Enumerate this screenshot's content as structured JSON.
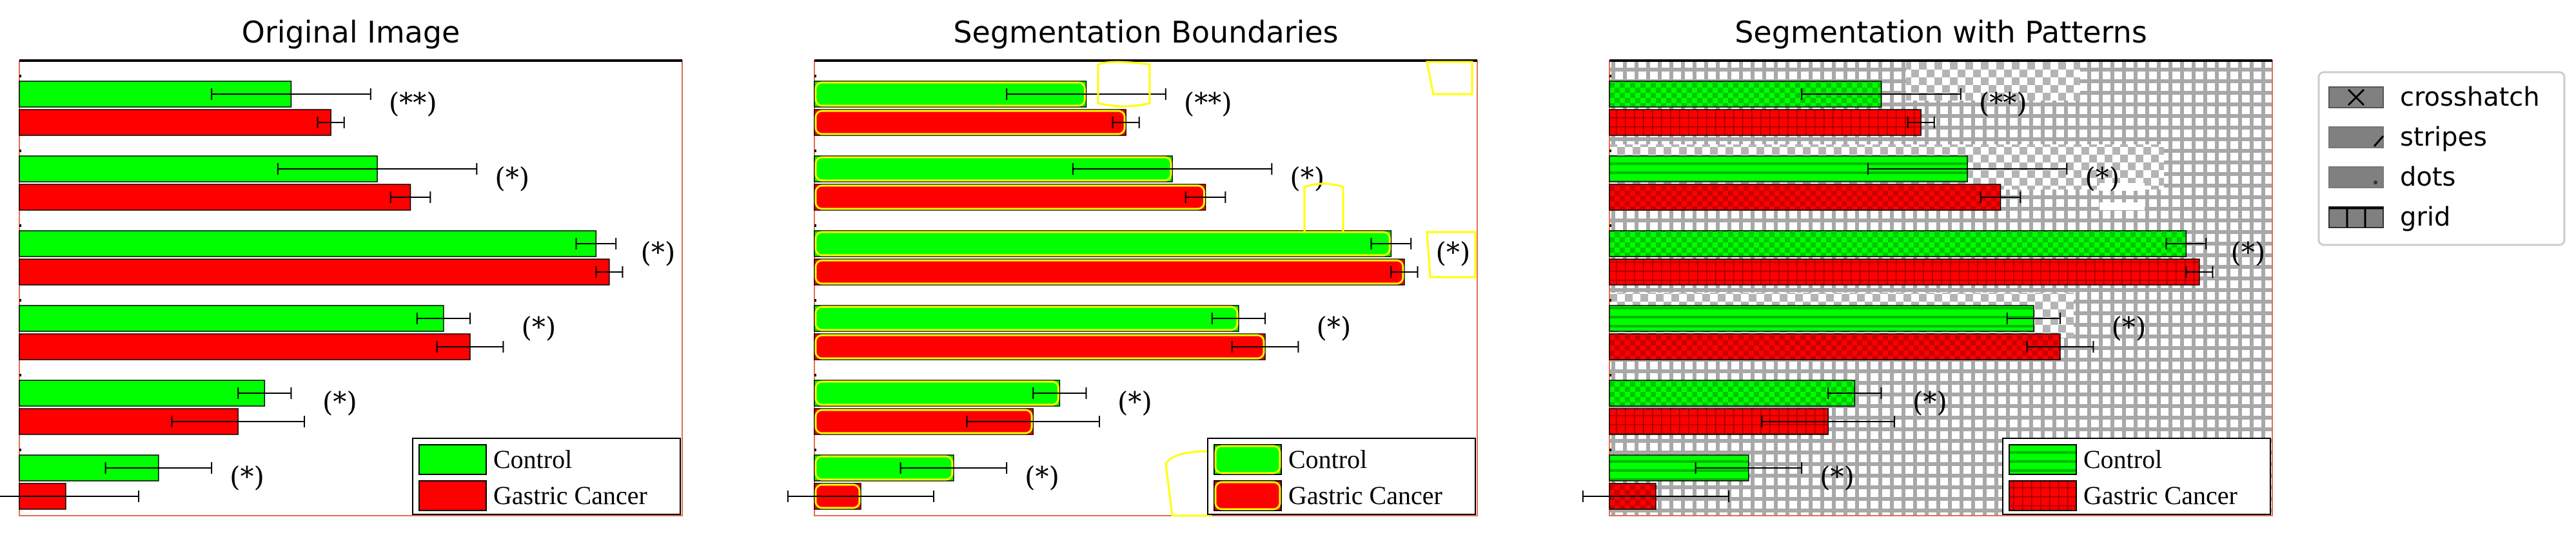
{
  "panels": [
    {
      "title": "Original Image",
      "overlay": "none"
    },
    {
      "title": "Segmentation Boundaries",
      "overlay": "boundaries"
    },
    {
      "title": "Segmentation with Patterns",
      "overlay": "patterns"
    }
  ],
  "chart_data": {
    "type": "bar",
    "orientation": "horizontal",
    "categories": [
      "",
      "",
      "",
      "",
      "",
      ""
    ],
    "series": [
      {
        "name": "Control",
        "color": "#00ff00",
        "values": [
          0.41,
          0.54,
          0.87,
          0.64,
          0.37,
          0.21
        ],
        "errors": [
          0.12,
          0.15,
          0.03,
          0.04,
          0.04,
          0.08
        ]
      },
      {
        "name": "Gastric Cancer",
        "color": "#ff0000",
        "values": [
          0.47,
          0.59,
          0.89,
          0.68,
          0.33,
          0.07
        ],
        "errors": [
          0.02,
          0.03,
          0.02,
          0.05,
          0.1,
          0.11
        ]
      }
    ],
    "annotations": [
      "(**)",
      "(*)",
      "(*)",
      "(*)",
      "(*)",
      "(*)"
    ],
    "xlim": [
      0,
      1
    ],
    "legend_position": "bottom-right",
    "boundary_color": "#ffff00"
  },
  "pattern_legend": {
    "items": [
      {
        "label": "crosshatch",
        "icon": "crosshatch-icon"
      },
      {
        "label": "stripes",
        "icon": "stripes-icon"
      },
      {
        "label": "dots",
        "icon": "dots-icon"
      },
      {
        "label": "grid",
        "icon": "grid-icon"
      }
    ]
  }
}
